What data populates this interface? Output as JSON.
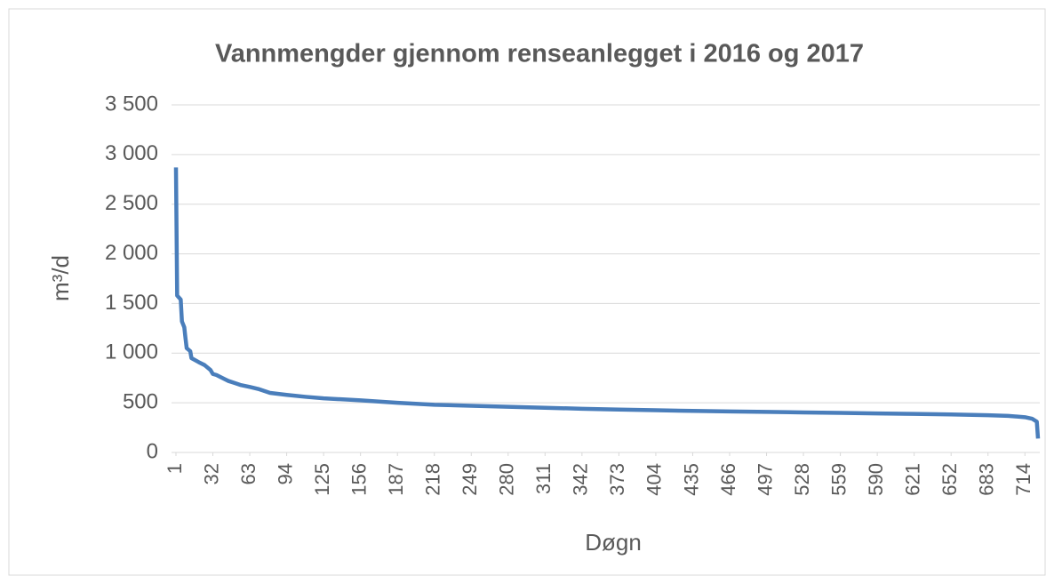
{
  "chart_data": {
    "type": "line",
    "title": "Vannmengder gjennom renseanlegget i 2016 og 2017",
    "xlabel": "Døgn",
    "ylabel": "m³/d",
    "x": [
      1,
      2,
      5,
      6,
      8,
      9,
      10,
      13,
      14,
      20,
      25,
      30,
      32,
      35,
      40,
      45,
      50,
      55,
      63,
      70,
      75,
      80,
      94,
      110,
      125,
      156,
      187,
      218,
      249,
      280,
      311,
      342,
      373,
      404,
      435,
      466,
      497,
      528,
      559,
      590,
      621,
      652,
      683,
      700,
      714,
      720,
      724,
      725
    ],
    "series": [
      {
        "name": "m³/d",
        "color": "#4a7ebb",
        "values": [
          2870,
          1580,
          1540,
          1320,
          1260,
          1150,
          1050,
          1020,
          950,
          910,
          880,
          830,
          790,
          780,
          750,
          720,
          700,
          680,
          660,
          640,
          620,
          600,
          580,
          560,
          545,
          525,
          500,
          480,
          470,
          460,
          450,
          440,
          432,
          425,
          418,
          413,
          408,
          403,
          398,
          393,
          388,
          383,
          375,
          368,
          355,
          340,
          310,
          140
        ]
      }
    ],
    "xlim": [
      1,
      725
    ],
    "xticks": [
      1,
      32,
      63,
      94,
      125,
      156,
      187,
      218,
      249,
      280,
      311,
      342,
      373,
      404,
      435,
      466,
      497,
      528,
      559,
      590,
      621,
      652,
      683,
      714
    ],
    "ylim": [
      0,
      3500
    ],
    "yticks": [
      0,
      500,
      {
        "value": 1000,
        "label": "1 000"
      },
      {
        "value": 1500,
        "label": "1 500"
      },
      {
        "value": 2000,
        "label": "2 000"
      },
      {
        "value": 2500,
        "label": "2 500"
      },
      {
        "value": 3000,
        "label": "3 000"
      },
      {
        "value": 3500,
        "label": "3 500"
      }
    ],
    "grid": true
  }
}
